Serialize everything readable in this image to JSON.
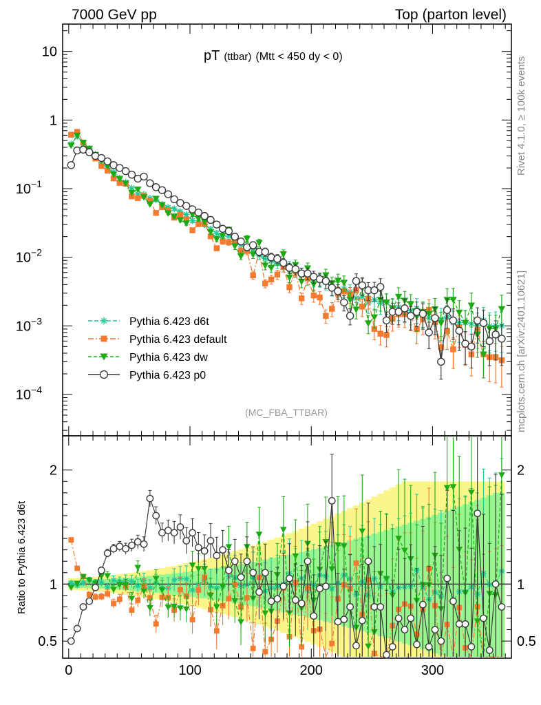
{
  "header": {
    "left": "7000 GeV pp",
    "right": "Top (parton level)"
  },
  "side_text": {
    "rivet": "Rivet 4.1.0, ≥ 100k events",
    "mcplots": "mcplots.cern.ch [arXiv:2401.10621]"
  },
  "analysis_tag": "(MC_FBA_TTBAR)",
  "colors": {
    "d6t": "#1ec99a",
    "default": "#f47a30",
    "dw": "#1eaa14",
    "p0": "#3a3a3a",
    "band_yellow": "#fbf58a",
    "band_green": "#98f590"
  },
  "chart_data": [
    {
      "type": "scatter",
      "panel": "main",
      "title_main": "pT",
      "title_small": "(ttbar)",
      "title_rest": "(Mtt < 450 dy < 0)",
      "yscale": "log",
      "ylim": [
        2.5e-05,
        25
      ],
      "xlim": [
        -5,
        365
      ],
      "y_ticks": [
        {
          "value": 10,
          "base": "10",
          "exp": ""
        },
        {
          "value": 1,
          "base": "1",
          "exp": ""
        },
        {
          "value": 0.1,
          "base": "10",
          "exp": "−1"
        },
        {
          "value": 0.01,
          "base": "10",
          "exp": "−2"
        },
        {
          "value": 0.001,
          "base": "10",
          "exp": "−3"
        },
        {
          "value": 0.0001,
          "base": "10",
          "exp": "−4"
        }
      ],
      "legend": [
        {
          "key": "d6t",
          "label": "Pythia 6.423 d6t",
          "marker": "star",
          "dash": "6,3"
        },
        {
          "key": "default",
          "label": "Pythia 6.423 default",
          "marker": "square",
          "dash": "8,3,2,3"
        },
        {
          "key": "dw",
          "label": "Pythia 6.423 dw",
          "marker": "triangle",
          "dash": "5,3"
        },
        {
          "key": "p0",
          "label": "Pythia 6.423 p0",
          "marker": "circle",
          "dash": ""
        }
      ],
      "p0_x": [
        2,
        7,
        12,
        17,
        22,
        27,
        32,
        37,
        42,
        47,
        52,
        57,
        62,
        67,
        72,
        77,
        82,
        87,
        92,
        97,
        102,
        107,
        112,
        117,
        122,
        127,
        132,
        137,
        142,
        147,
        152,
        157,
        162,
        167,
        172,
        177,
        182,
        187,
        192,
        197,
        202,
        207,
        212,
        217,
        222,
        227,
        232,
        237,
        242,
        247,
        252,
        257,
        262,
        267,
        272,
        277,
        282,
        287,
        292,
        297,
        302,
        307,
        312,
        317,
        322,
        327,
        332,
        337,
        342,
        347,
        352,
        357
      ],
      "p0_y": [
        0.22,
        0.36,
        0.37,
        0.34,
        0.3,
        0.28,
        0.25,
        0.22,
        0.2,
        0.18,
        0.16,
        0.14,
        0.15,
        0.12,
        0.105,
        0.095,
        0.083,
        0.07,
        0.062,
        0.056,
        0.05,
        0.045,
        0.04,
        0.035,
        0.03,
        0.026,
        0.024,
        0.02,
        0.017,
        0.014,
        0.015,
        0.012,
        0.012,
        0.01,
        0.0095,
        0.0083,
        0.007,
        0.0067,
        0.0058,
        0.0058,
        0.0052,
        0.0048,
        0.0045,
        0.0036,
        0.0032,
        0.0022,
        0.0014,
        0.0045,
        0.0039,
        0.0033,
        0.0033,
        0.0037,
        0.0012,
        0.0016,
        0.0016,
        0.0018,
        0.0014,
        0.0016,
        0.0015,
        0.0008,
        0.0013,
        0.0003,
        0.0017,
        0.0012,
        0.00085,
        0.00055,
        0.0005,
        0.0012,
        0.0011,
        0.0006,
        0.00075,
        0.00065
      ],
      "ref_x": [
        2,
        7,
        12,
        17,
        22,
        27,
        32,
        37,
        42,
        47,
        52,
        57,
        62,
        67,
        72,
        77,
        82,
        87,
        92,
        97,
        102,
        107,
        112,
        117,
        122,
        127,
        132,
        137,
        142,
        147,
        152,
        157,
        162,
        167,
        172,
        177,
        182,
        187,
        192,
        197,
        202,
        207,
        212,
        217,
        222,
        227,
        232,
        237,
        242,
        247,
        252,
        257,
        262,
        267,
        272,
        277,
        282,
        287,
        292,
        297,
        302,
        307,
        312,
        317,
        322,
        327,
        332,
        337,
        342,
        347,
        352,
        357
      ],
      "ref_y": [
        0.44,
        0.59,
        0.44,
        0.37,
        0.31,
        0.24,
        0.2,
        0.17,
        0.14,
        0.12,
        0.1,
        0.085,
        0.08,
        0.075,
        0.068,
        0.061,
        0.055,
        0.049,
        0.044,
        0.04,
        0.036,
        0.032,
        0.029,
        0.026,
        0.023,
        0.021,
        0.019,
        0.017,
        0.0155,
        0.014,
        0.0125,
        0.0113,
        0.0102,
        0.0092,
        0.0083,
        0.0075,
        0.0068,
        0.0062,
        0.0056,
        0.0051,
        0.0047,
        0.0043,
        0.004,
        0.0037,
        0.0034,
        0.0032,
        0.003,
        0.0028,
        0.0026,
        0.0024,
        0.0023,
        0.0022,
        0.0021,
        0.002,
        0.0019,
        0.0018,
        0.0017,
        0.0016,
        0.0016,
        0.0015,
        0.0014,
        0.0014,
        0.0013,
        0.0013,
        0.0012,
        0.0012,
        0.0011,
        0.0011,
        0.0011,
        0.001,
        0.001,
        0.0009
      ]
    },
    {
      "type": "scatter",
      "panel": "ratio",
      "ylabel": "Ratio to Pythia 6.423 d6t",
      "ylim": [
        0.35,
        2.3
      ],
      "xlim": [
        -5,
        365
      ],
      "x_ticks": [
        0,
        100,
        200,
        300
      ],
      "y_ticks": [
        0.5,
        1,
        2
      ],
      "p0_ratio": [
        0.5,
        0.61,
        0.8,
        0.85,
        0.97,
        1.12,
        1.27,
        1.31,
        1.33,
        1.31,
        1.34,
        1.37,
        1.35,
        1.75,
        1.6,
        1.45,
        1.47,
        1.45,
        1.5,
        1.38,
        1.45,
        1.32,
        1.29,
        1.38,
        1.25,
        1.3,
        1.12,
        1.2,
        1.06,
        1.2,
        1.1,
        0.93,
        1.1,
        0.85,
        0.87,
        0.98,
        1.05,
        0.86,
        0.83,
        1.2,
        0.72,
        0.96,
        0.98,
        1.73,
        0.67,
        0.69,
        0.8,
        0.46,
        0.68,
        1.2,
        0.8,
        0.8,
        0.38,
        0.45,
        0.7,
        0.6,
        0.7,
        0.47,
        0.82,
        0.45,
        0.6,
        0.5,
        1.05,
        0.85,
        0.65,
        0.65,
        0.45,
        1.62,
        0.7,
        0.42,
        1.0,
        0.8
      ]
    }
  ]
}
